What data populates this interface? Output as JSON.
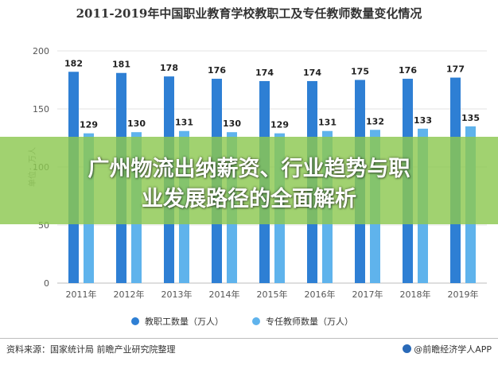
{
  "title": "2011-2019年中国职业教育学校教职工及专任教师数量变化情况",
  "banner": {
    "line1": "广州物流出纳薪资、行业趋势与职",
    "line2": "业发展路径的全面解析"
  },
  "footer": {
    "source": "资料来源：国家统计局 前瞻产业研究院整理",
    "brand": "@前瞻经济学人APP"
  },
  "chart_data": {
    "type": "bar",
    "title": "2011-2019年中国职业教育学校教职工及专任教师数量变化情况",
    "ylabel": "单位：万人",
    "xlabel": "",
    "ylim": [
      0,
      200
    ],
    "yticks": [
      0,
      50,
      100,
      150,
      200
    ],
    "grid": true,
    "legend_position": "bottom",
    "categories": [
      "2011年",
      "2012年",
      "2013年",
      "2014年",
      "2015年",
      "2016年",
      "2017年",
      "2018年",
      "2019年"
    ],
    "series": [
      {
        "name": "教职工数量（万人）",
        "color": "#2e7fd4",
        "values": [
          182,
          181,
          178,
          176,
          174,
          174,
          175,
          176,
          177
        ]
      },
      {
        "name": "专任教师数量（万人）",
        "color": "#5fb3ec",
        "values": [
          129,
          130,
          131,
          130,
          129,
          131,
          132,
          133,
          135
        ]
      }
    ]
  }
}
